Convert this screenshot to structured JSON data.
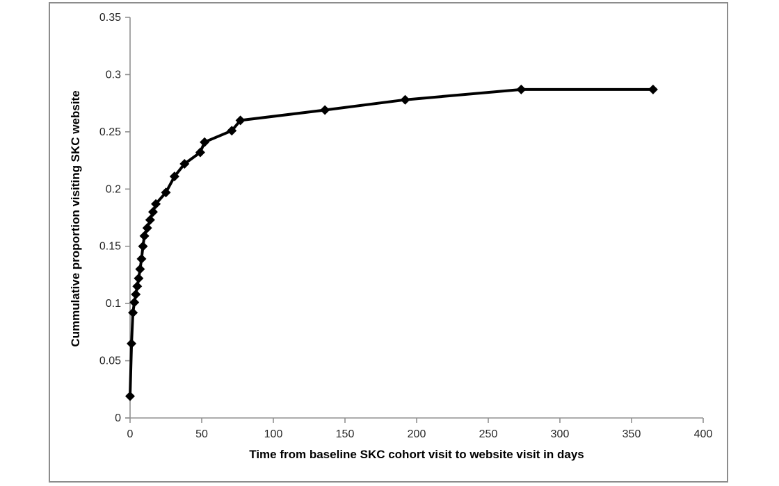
{
  "chart_data": {
    "type": "line",
    "title": "",
    "xlabel": "Time from baseline SKC cohort visit to website visit in days",
    "ylabel": "Cummulative proportion visiting SKC website",
    "xlim": [
      0,
      400
    ],
    "ylim": [
      0,
      0.35
    ],
    "grid": false,
    "legend_position": "none",
    "marker": "diamond",
    "line_color": "#000000",
    "marker_color": "#000000",
    "axis_color": "#909090",
    "tick_label_color": "#262626",
    "frame_color": "#8c8c8c",
    "xticks": [
      {
        "v": 0,
        "label": "0"
      },
      {
        "v": 50,
        "label": "50"
      },
      {
        "v": 100,
        "label": "100"
      },
      {
        "v": 150,
        "label": "150"
      },
      {
        "v": 200,
        "label": "200"
      },
      {
        "v": 250,
        "label": "250"
      },
      {
        "v": 300,
        "label": "300"
      },
      {
        "v": 350,
        "label": "350"
      },
      {
        "v": 400,
        "label": "400"
      }
    ],
    "yticks": [
      {
        "v": 0,
        "label": "0"
      },
      {
        "v": 0.05,
        "label": "0.05"
      },
      {
        "v": 0.1,
        "label": "0.1"
      },
      {
        "v": 0.15,
        "label": "0.15"
      },
      {
        "v": 0.2,
        "label": "0.2"
      },
      {
        "v": 0.25,
        "label": "0.25"
      },
      {
        "v": 0.3,
        "label": "0.3"
      },
      {
        "v": 0.35,
        "label": "0.35"
      }
    ],
    "series": [
      {
        "name": "",
        "points": [
          [
            0,
            0.019
          ],
          [
            1,
            0.065
          ],
          [
            2,
            0.092
          ],
          [
            3,
            0.101
          ],
          [
            4,
            0.108
          ],
          [
            5,
            0.115
          ],
          [
            6,
            0.122
          ],
          [
            7,
            0.13
          ],
          [
            8,
            0.139
          ],
          [
            9,
            0.15
          ],
          [
            10,
            0.159
          ],
          [
            12,
            0.166
          ],
          [
            14,
            0.173
          ],
          [
            16,
            0.18
          ],
          [
            18,
            0.187
          ],
          [
            25,
            0.197
          ],
          [
            31,
            0.211
          ],
          [
            38,
            0.222
          ],
          [
            49,
            0.232
          ],
          [
            52,
            0.241
          ],
          [
            71,
            0.251
          ],
          [
            77,
            0.26
          ],
          [
            136,
            0.269
          ],
          [
            192,
            0.278
          ],
          [
            273,
            0.287
          ],
          [
            365,
            0.287
          ]
        ]
      }
    ]
  }
}
